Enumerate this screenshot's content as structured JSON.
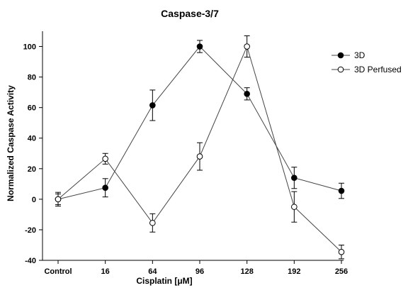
{
  "chart_data": {
    "type": "line",
    "title": "Caspase-3/7",
    "xlabel": "Cisplatin [μM]",
    "ylabel": "Normalized Caspase Activity",
    "categories": [
      "Control",
      "16",
      "64",
      "96",
      "128",
      "192",
      "256"
    ],
    "ylim": [
      -40,
      110
    ],
    "yticks": [
      -40,
      -20,
      0,
      20,
      40,
      60,
      80,
      100
    ],
    "grid": false,
    "legend_position": "top-right",
    "series": [
      {
        "name": "3D",
        "marker": "filled-circle",
        "color": "#000000",
        "values": [
          0,
          7.5,
          61.5,
          100,
          69,
          14,
          5.5
        ],
        "errors": [
          4.5,
          6,
          10,
          4,
          4,
          7,
          5
        ]
      },
      {
        "name": "3D Perfused",
        "marker": "open-circle",
        "color": "#000000",
        "values": [
          0,
          26.5,
          -15.5,
          28,
          100,
          -5,
          -34.5
        ],
        "errors": [
          3.5,
          3.5,
          6,
          9,
          7,
          10,
          4.5
        ]
      }
    ]
  }
}
